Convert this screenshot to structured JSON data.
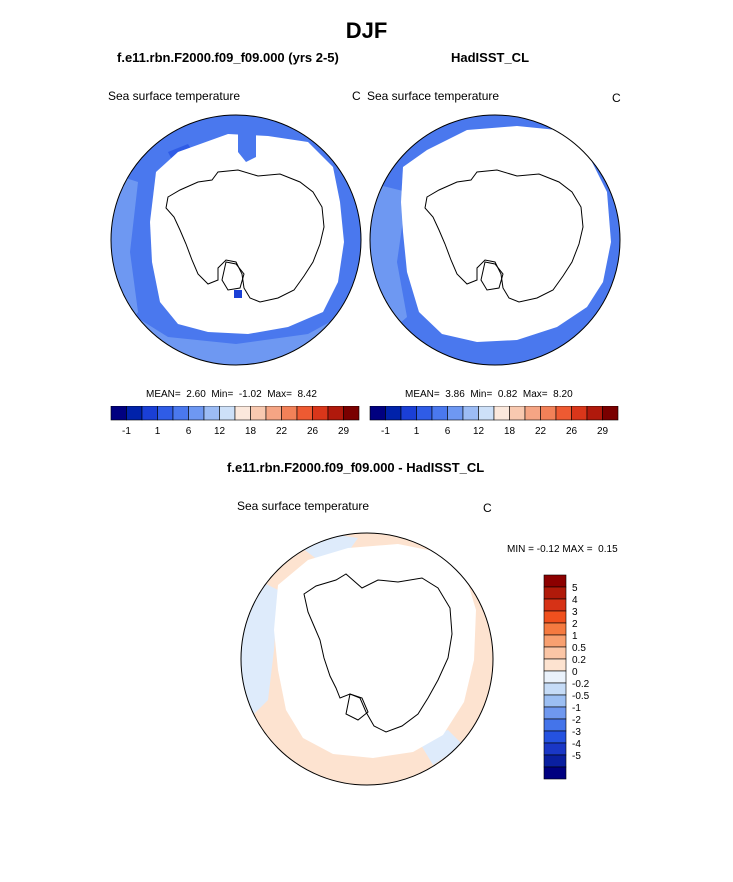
{
  "page": {
    "title": "DJF"
  },
  "panels": [
    {
      "case": "f.e11.rbn.F2000.f09_f09.000 (yrs 2-5)",
      "field": "Sea surface temperature",
      "units": "C",
      "stats": {
        "mean_label": "MEAN=",
        "mean": "2.60",
        "min_label": "Min=",
        "min": "-1.02",
        "max_label": "Max=",
        "max": "8.42"
      }
    },
    {
      "case": "HadISST_CL",
      "field": "Sea surface temperature",
      "units": "C",
      "stats": {
        "mean_label": "MEAN=",
        "mean": "3.86",
        "min_label": "Min=",
        "min": "0.82",
        "max_label": "Max=",
        "max": "8.20"
      }
    }
  ],
  "colorbar_top": {
    "colors": [
      "#000080",
      "#0022aa",
      "#1a3fd6",
      "#2f5ce6",
      "#4a78ee",
      "#6e98f2",
      "#9cbcf5",
      "#cde0f8",
      "#fbe8dc",
      "#f8c9b0",
      "#f5a584",
      "#f28158",
      "#ee5a32",
      "#d9361a",
      "#b0190c",
      "#7a0000"
    ],
    "tick_labels": [
      "-1",
      "1",
      "6",
      "12",
      "18",
      "22",
      "26",
      "29"
    ]
  },
  "difference": {
    "title": "f.e11.rbn.F2000.f09_f09.000 - HadISST_CL",
    "field": "Sea surface temperature",
    "units": "C",
    "stats": {
      "min_label": "MIN =",
      "min": "-0.12",
      "max_label": "MAX =",
      "max": "0.15"
    },
    "colorbar": {
      "colors": [
        "#8c0000",
        "#b01a0a",
        "#d63216",
        "#f0501e",
        "#f57a40",
        "#f8a070",
        "#fbc6a6",
        "#fde3d0",
        "#eaf2fb",
        "#c6dcf7",
        "#9cbff3",
        "#6f98ef",
        "#4474ea",
        "#2552e0",
        "#1a37c6",
        "#0a1fa0",
        "#000080"
      ],
      "labels": [
        "5",
        "4",
        "3",
        "2",
        "1",
        "0.5",
        "0.2",
        "0",
        "-0.2",
        "-0.5",
        "-1",
        "-2",
        "-3",
        "-4",
        "-5"
      ]
    }
  }
}
